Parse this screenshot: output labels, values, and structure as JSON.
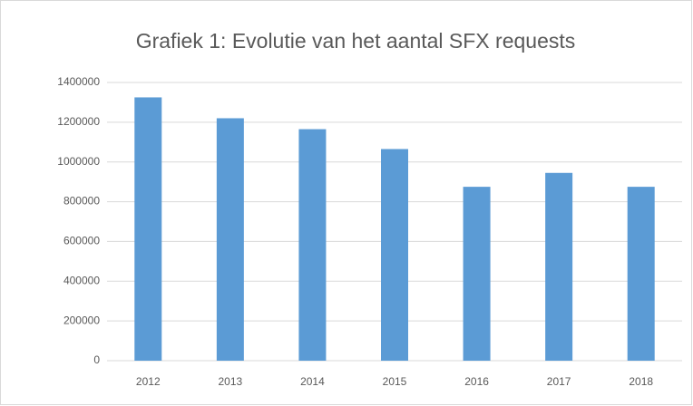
{
  "chart_data": {
    "type": "bar",
    "title": "Grafiek 1: Evolutie van het aantal SFX requests",
    "categories": [
      "2012",
      "2013",
      "2014",
      "2015",
      "2016",
      "2017",
      "2018"
    ],
    "values": [
      1325000,
      1220000,
      1165000,
      1065000,
      875000,
      945000,
      875000
    ],
    "color": "#5b9bd5",
    "ylim": [
      0,
      1400000
    ],
    "yticks": [
      0,
      200000,
      400000,
      600000,
      800000,
      1000000,
      1200000,
      1400000
    ],
    "grid": true
  }
}
